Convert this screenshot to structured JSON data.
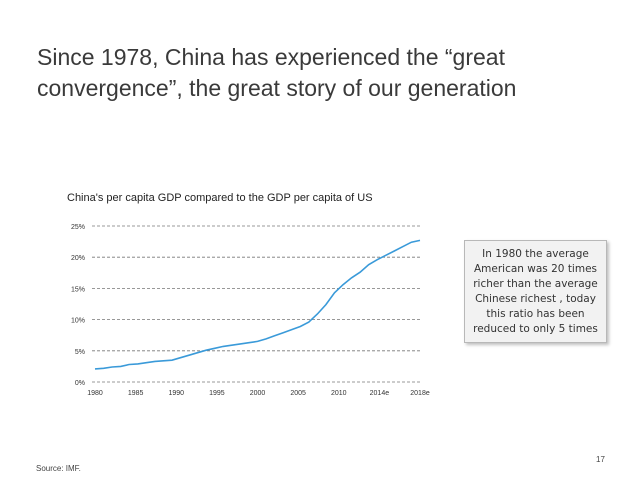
{
  "slide": {
    "title": "Since 1978, China has experienced the “great convergence”, the great story of our generation",
    "callout": "In 1980 the average American was 20 times richer than the average Chinese richest , today this ratio has been reduced to only 5 times",
    "page_number": "17",
    "source": "Source: IMF."
  },
  "chart_data": {
    "type": "line",
    "title": "China's per capita GDP compared to the GDP per capita of US",
    "xlabel": "",
    "ylabel": "",
    "x_tick_labels": [
      "1980",
      "1985",
      "1990",
      "1995",
      "2000",
      "2005",
      "2010",
      "2014e",
      "2018e"
    ],
    "y_tick_labels": [
      "0%",
      "5%",
      "10%",
      "15%",
      "20%",
      "25%"
    ],
    "y_ticks": [
      0,
      5,
      10,
      15,
      20,
      25
    ],
    "ylim": [
      0,
      25
    ],
    "xlim": [
      1980,
      2018
    ],
    "grid": true,
    "line_color": "#3a9ad9",
    "series": [
      {
        "x": [
          1980,
          1981,
          1982,
          1983,
          1984,
          1985,
          1986,
          1987,
          1988,
          1989,
          1990,
          1991,
          1992,
          1993,
          1994,
          1995,
          1996,
          1997,
          1998,
          1999,
          2000,
          2001,
          2002,
          2003,
          2004,
          2005,
          2006,
          2007,
          2008,
          2009,
          2010,
          2011,
          2012,
          2013,
          2014,
          2015,
          2016,
          2017,
          2018
        ],
        "values": [
          2.1,
          2.2,
          2.4,
          2.5,
          2.8,
          2.9,
          3.1,
          3.3,
          3.4,
          3.5,
          3.9,
          4.3,
          4.7,
          5.1,
          5.4,
          5.7,
          5.9,
          6.1,
          6.3,
          6.5,
          6.9,
          7.4,
          7.9,
          8.4,
          8.9,
          9.6,
          10.9,
          12.4,
          14.3,
          15.6,
          16.7,
          17.6,
          18.8,
          19.6,
          20.3,
          21.0,
          21.7,
          22.4,
          22.7
        ]
      }
    ]
  }
}
